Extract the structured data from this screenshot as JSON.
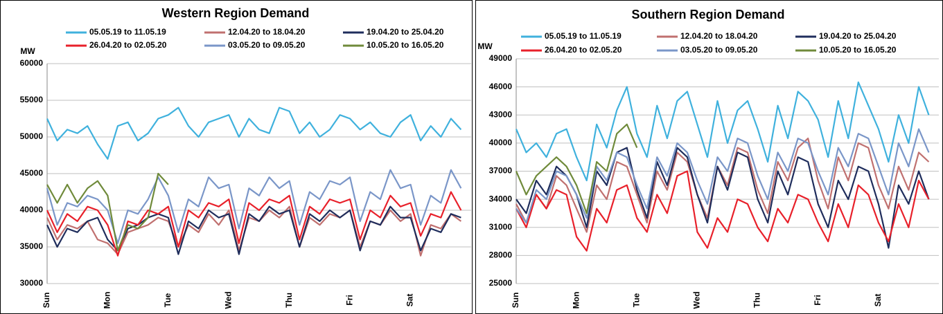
{
  "chart_data": [
    {
      "type": "line",
      "title": "Western Region Demand",
      "y_label": "MW",
      "categories": [
        "Sun",
        null,
        null,
        null,
        null,
        null,
        "Mon",
        null,
        null,
        null,
        null,
        null,
        "Tue",
        null,
        null,
        null,
        null,
        null,
        "Wed",
        null,
        null,
        null,
        null,
        null,
        "Thu",
        null,
        null,
        null,
        null,
        null,
        "Fri",
        null,
        null,
        null,
        null,
        null,
        "Sat",
        null,
        null,
        null,
        null,
        null
      ],
      "ylim": [
        30000,
        60000
      ],
      "yticks": [
        30000,
        35000,
        40000,
        45000,
        50000,
        55000,
        60000
      ],
      "grid": true,
      "series": [
        {
          "name": "05.05.19 to 11.05.19",
          "color": "#3fb1dd",
          "values": [
            52500,
            49500,
            51000,
            50500,
            51500,
            49000,
            47000,
            51500,
            52000,
            49500,
            50500,
            52500,
            53000,
            54000,
            51500,
            50000,
            52000,
            52500,
            53000,
            50000,
            52500,
            51000,
            50500,
            54000,
            53500,
            50500,
            52000,
            50000,
            51000,
            53000,
            52500,
            51000,
            52000,
            50500,
            50000,
            52000,
            53000,
            49500,
            51500,
            50000,
            52500,
            51000
          ]
        },
        {
          "name": "12.04.20 to 18.04.20",
          "color": "#c0706f",
          "values": [
            39000,
            36000,
            38000,
            37500,
            38500,
            36000,
            35500,
            34000,
            37000,
            37500,
            38000,
            39000,
            38500,
            35000,
            38000,
            37000,
            39500,
            38000,
            40000,
            34500,
            39000,
            38500,
            40000,
            39000,
            40500,
            35000,
            39000,
            38000,
            39500,
            39000,
            40000,
            35000,
            38500,
            38000,
            40000,
            38500,
            39500,
            33800,
            38000,
            37500,
            39500,
            38500
          ]
        },
        {
          "name": "19.04.20 to 25.04.20",
          "color": "#1f2d5c",
          "values": [
            38000,
            35000,
            37500,
            37000,
            38500,
            39000,
            36000,
            34500,
            37500,
            38000,
            39000,
            39500,
            39000,
            34000,
            38500,
            37500,
            40000,
            39000,
            39500,
            34000,
            39500,
            38500,
            40500,
            39500,
            40000,
            35000,
            39500,
            38500,
            40000,
            39000,
            40000,
            34500,
            38500,
            38000,
            40500,
            39000,
            39000,
            34500,
            37500,
            37000,
            39500,
            39000
          ]
        },
        {
          "name": "26.04.20 to 02.05.20",
          "color": "#e8202a",
          "values": [
            40000,
            37000,
            39500,
            38500,
            40500,
            40000,
            38000,
            33800,
            38500,
            38000,
            40000,
            39500,
            40500,
            35000,
            40000,
            39000,
            41000,
            40500,
            41500,
            35500,
            41000,
            40000,
            41500,
            41000,
            42000,
            36000,
            40500,
            39500,
            41500,
            41000,
            41500,
            36000,
            40000,
            39000,
            42000,
            40500,
            41000,
            36500,
            39500,
            39000,
            42500,
            40000
          ]
        },
        {
          "name": "03.05.20 to 09.05.20",
          "color": "#7a96c8",
          "values": [
            43000,
            38000,
            41000,
            40500,
            42000,
            41500,
            40000,
            35500,
            40000,
            39500,
            41500,
            44500,
            42000,
            37000,
            41500,
            40500,
            44500,
            43000,
            43500,
            37500,
            43000,
            42000,
            44500,
            43000,
            44000,
            38000,
            42500,
            41500,
            44000,
            43500,
            44500,
            38500,
            42500,
            41500,
            45500,
            43000,
            43500,
            38000,
            42000,
            41000,
            45500,
            43000
          ]
        },
        {
          "name": "10.05.20 to 16.05.20",
          "color": "#6f8a3a",
          "values": [
            43500,
            41000,
            43500,
            41000,
            43000,
            44000,
            42000,
            34500,
            38000,
            37500,
            39000,
            45000,
            43500,
            null,
            null,
            null,
            null,
            null,
            null,
            null,
            null,
            null,
            null,
            null,
            null,
            null,
            null,
            null,
            null,
            null,
            null,
            null,
            null,
            null,
            null,
            null,
            null,
            null,
            null,
            null,
            null,
            null
          ]
        }
      ]
    },
    {
      "type": "line",
      "title": "Southern Region Demand",
      "y_label": "MW",
      "categories": [
        "Sun",
        null,
        null,
        null,
        null,
        null,
        "Mon",
        null,
        null,
        null,
        null,
        null,
        "Tue",
        null,
        null,
        null,
        null,
        null,
        "Wed",
        null,
        null,
        null,
        null,
        null,
        "Thu",
        null,
        null,
        null,
        null,
        null,
        "Fri",
        null,
        null,
        null,
        null,
        null,
        "Sat",
        null,
        null,
        null,
        null,
        null
      ],
      "ylim": [
        25000,
        49000
      ],
      "yticks": [
        25000,
        28000,
        31000,
        34000,
        37000,
        40000,
        43000,
        46000,
        49000
      ],
      "grid": true,
      "series": [
        {
          "name": "05.05.19 to 11.05.19",
          "color": "#3fb1dd",
          "values": [
            41500,
            39000,
            40000,
            38500,
            41000,
            41500,
            38500,
            36000,
            42000,
            39500,
            43500,
            46000,
            41000,
            38500,
            44000,
            40500,
            44500,
            45500,
            42000,
            38500,
            44500,
            40000,
            43500,
            44500,
            41500,
            38000,
            44000,
            40500,
            45500,
            44500,
            42500,
            38500,
            44500,
            40500,
            46500,
            44000,
            41500,
            38000,
            43000,
            40000,
            46000,
            43000
          ]
        },
        {
          "name": "12.04.20 to 18.04.20",
          "color": "#c0706f",
          "values": [
            33500,
            31500,
            34500,
            33000,
            36500,
            35500,
            33000,
            30500,
            35500,
            34000,
            38000,
            37500,
            34500,
            31500,
            37000,
            35000,
            39000,
            38000,
            34500,
            32000,
            37500,
            35500,
            39500,
            39000,
            35000,
            32500,
            38000,
            36000,
            39500,
            40500,
            36000,
            33000,
            38500,
            36000,
            40000,
            39500,
            35500,
            33000,
            37500,
            35000,
            39000,
            38000
          ]
        },
        {
          "name": "19.04.20 to 25.04.20",
          "color": "#1f2d5c",
          "values": [
            34000,
            32500,
            36000,
            34500,
            37500,
            36500,
            34500,
            31000,
            37000,
            35500,
            39000,
            39500,
            35000,
            32000,
            38000,
            35500,
            39500,
            38500,
            34500,
            31500,
            37500,
            35000,
            39000,
            38500,
            34000,
            31500,
            37000,
            34500,
            38500,
            38000,
            33500,
            31000,
            36000,
            34000,
            37500,
            37000,
            33500,
            28800,
            35500,
            33500,
            37000,
            34000
          ]
        },
        {
          "name": "26.04.20 to 02.05.20",
          "color": "#e8202a",
          "values": [
            33000,
            31000,
            34500,
            33000,
            35000,
            34500,
            30000,
            28500,
            33000,
            31500,
            35000,
            35500,
            32000,
            30500,
            34500,
            32500,
            36500,
            37000,
            30500,
            28800,
            32000,
            30500,
            34000,
            33500,
            31000,
            29500,
            33000,
            31500,
            34500,
            34000,
            31500,
            29500,
            33500,
            31000,
            35500,
            34500,
            31500,
            29500,
            33500,
            31000,
            36000,
            34000
          ]
        },
        {
          "name": "03.05.20 to 09.05.20",
          "color": "#7a96c8",
          "values": [
            33000,
            31500,
            35000,
            34000,
            37000,
            36500,
            34500,
            32000,
            37500,
            36000,
            39000,
            38500,
            35500,
            33000,
            38500,
            36500,
            40000,
            39000,
            36000,
            33500,
            38500,
            37000,
            40500,
            40000,
            36500,
            34000,
            39000,
            37000,
            40500,
            40000,
            37000,
            34500,
            39500,
            37500,
            41000,
            40500,
            37500,
            34500,
            40000,
            37500,
            41500,
            39000
          ]
        },
        {
          "name": "10.05.20 to 16.05.20",
          "color": "#6f8a3a",
          "values": [
            37000,
            34500,
            36500,
            37500,
            38500,
            37500,
            35500,
            32500,
            38000,
            37000,
            41000,
            42000,
            39500,
            null,
            null,
            null,
            null,
            null,
            null,
            null,
            null,
            null,
            null,
            null,
            null,
            null,
            null,
            null,
            null,
            null,
            null,
            null,
            null,
            null,
            null,
            null,
            null,
            null,
            null,
            null,
            null,
            null
          ]
        }
      ]
    }
  ]
}
